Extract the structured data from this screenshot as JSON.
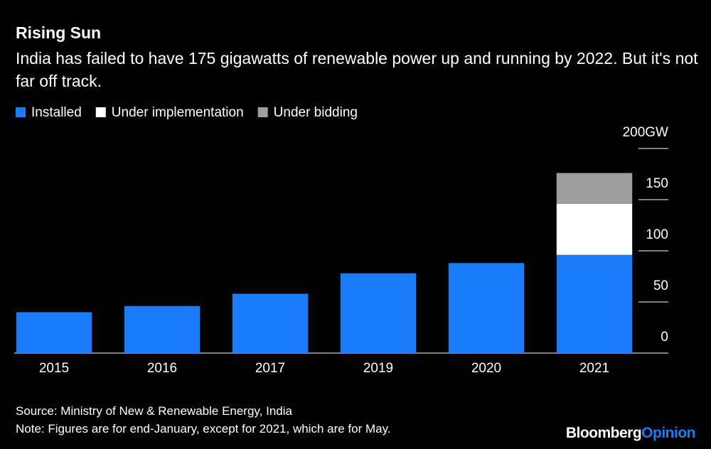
{
  "chart_data": {
    "type": "stacked_bar",
    "title": "Rising Sun",
    "subtitle": "India has failed to have 175 gigawatts of renewable power up and running by 2022. But it's not far off track.",
    "categories": [
      "2015",
      "2016",
      "2017",
      "2019",
      "2020",
      "2021"
    ],
    "series": [
      {
        "name": "Installed",
        "color": "#1a7cfa",
        "values": [
          40,
          46,
          58,
          78,
          88,
          96
        ]
      },
      {
        "name": "Under implementation",
        "color": "#ffffff",
        "values": [
          null,
          null,
          null,
          null,
          null,
          50
        ]
      },
      {
        "name": "Under bidding",
        "color": "#9e9e9e",
        "values": [
          null,
          null,
          null,
          null,
          null,
          30
        ]
      }
    ],
    "ylim": [
      0,
      200
    ],
    "yticks": [
      0,
      50,
      100,
      150,
      {
        "value": 200,
        "label": "200GW"
      }
    ],
    "source": "Source: Ministry of New & Renewable Energy, India",
    "note": "Note: Figures are for end-January, except for 2021, which are for May."
  },
  "branding": {
    "name": "Bloomberg",
    "suffix": "Opinion"
  }
}
